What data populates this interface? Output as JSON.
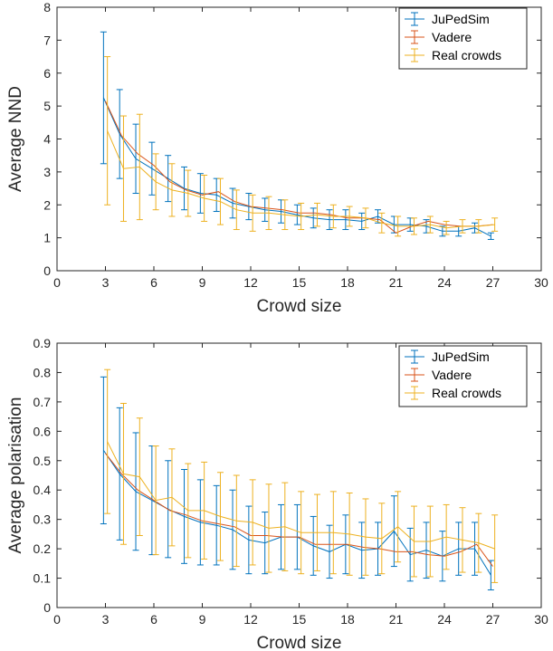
{
  "chart_data": [
    {
      "type": "line",
      "xlabel": "Crowd size",
      "ylabel": "Average NND",
      "xlim": [
        0,
        30
      ],
      "ylim": [
        0,
        8
      ],
      "xticks": [
        0,
        3,
        6,
        9,
        12,
        15,
        18,
        21,
        24,
        27,
        30
      ],
      "yticks": [
        0,
        1,
        2,
        3,
        4,
        5,
        6,
        7,
        8
      ],
      "legend_position": "top-right",
      "grid": false,
      "x": [
        3,
        4,
        5,
        6,
        7,
        8,
        9,
        10,
        11,
        12,
        13,
        14,
        15,
        16,
        17,
        18,
        19,
        20,
        21,
        22,
        23,
        24,
        25,
        26,
        27
      ],
      "series": [
        {
          "name": "JuPedSim",
          "color": "#0072bd",
          "values": [
            5.25,
            4.15,
            3.4,
            3.1,
            2.8,
            2.5,
            2.35,
            2.3,
            2.05,
            1.95,
            1.85,
            1.8,
            1.7,
            1.6,
            1.55,
            1.55,
            1.5,
            1.65,
            1.4,
            1.4,
            1.35,
            1.2,
            1.2,
            1.3,
            1.05
          ],
          "error": [
            2.0,
            1.35,
            1.05,
            0.8,
            0.7,
            0.65,
            0.6,
            0.5,
            0.45,
            0.4,
            0.35,
            0.35,
            0.3,
            0.3,
            0.3,
            0.3,
            0.25,
            0.2,
            0.25,
            0.2,
            0.2,
            0.15,
            0.15,
            0.15,
            0.1
          ]
        },
        {
          "name": "Vadere",
          "color": "#d95319",
          "values": [
            5.15,
            4.1,
            3.55,
            3.2,
            2.7,
            2.45,
            2.3,
            2.4,
            2.1,
            1.95,
            1.9,
            1.85,
            1.75,
            1.75,
            1.7,
            1.6,
            1.6,
            1.55,
            1.15,
            1.35,
            1.5,
            1.4,
            1.35,
            1.35,
            1.4
          ]
        },
        {
          "name": "Real crowds",
          "color": "#edb120",
          "values": [
            4.25,
            3.1,
            3.15,
            2.7,
            2.45,
            2.35,
            2.2,
            2.1,
            1.85,
            1.75,
            1.75,
            1.7,
            1.65,
            1.7,
            1.65,
            1.65,
            1.6,
            1.45,
            1.35,
            1.35,
            1.4,
            1.3,
            1.35,
            1.35,
            1.4
          ],
          "error": [
            2.25,
            1.6,
            1.6,
            0.85,
            0.8,
            0.7,
            0.7,
            0.7,
            0.6,
            0.55,
            0.5,
            0.45,
            0.4,
            0.35,
            0.35,
            0.3,
            0.3,
            0.3,
            0.3,
            0.25,
            0.25,
            0.2,
            0.2,
            0.2,
            0.2
          ]
        }
      ]
    },
    {
      "type": "line",
      "xlabel": "Crowd size",
      "ylabel": "Average polarisation",
      "xlim": [
        0,
        30
      ],
      "ylim": [
        0,
        0.9
      ],
      "xticks": [
        0,
        3,
        6,
        9,
        12,
        15,
        18,
        21,
        24,
        27,
        30
      ],
      "yticks": [
        0,
        0.1,
        0.2,
        0.3,
        0.4,
        0.5,
        0.6,
        0.7,
        0.8,
        0.9
      ],
      "legend_position": "top-right",
      "grid": false,
      "x": [
        3,
        4,
        5,
        6,
        7,
        8,
        9,
        10,
        11,
        12,
        13,
        14,
        15,
        16,
        17,
        18,
        19,
        20,
        21,
        22,
        23,
        24,
        25,
        26,
        27
      ],
      "series": [
        {
          "name": "JuPedSim",
          "color": "#0072bd",
          "values": [
            0.535,
            0.455,
            0.395,
            0.365,
            0.335,
            0.31,
            0.29,
            0.28,
            0.265,
            0.23,
            0.22,
            0.24,
            0.24,
            0.21,
            0.19,
            0.215,
            0.195,
            0.2,
            0.26,
            0.18,
            0.195,
            0.175,
            0.2,
            0.2,
            0.11
          ],
          "error": [
            0.25,
            0.225,
            0.2,
            0.185,
            0.165,
            0.16,
            0.145,
            0.135,
            0.135,
            0.115,
            0.105,
            0.11,
            0.11,
            0.1,
            0.09,
            0.1,
            0.095,
            0.09,
            0.12,
            0.09,
            0.095,
            0.085,
            0.09,
            0.09,
            0.05
          ]
        },
        {
          "name": "Vadere",
          "color": "#d95319",
          "values": [
            0.525,
            0.455,
            0.4,
            0.365,
            0.33,
            0.315,
            0.295,
            0.285,
            0.275,
            0.245,
            0.245,
            0.24,
            0.24,
            0.215,
            0.215,
            0.215,
            0.205,
            0.2,
            0.19,
            0.19,
            0.18,
            0.175,
            0.19,
            0.215,
            0.14
          ]
        },
        {
          "name": "Real crowds",
          "color": "#edb120",
          "values": [
            0.565,
            0.455,
            0.445,
            0.365,
            0.375,
            0.33,
            0.33,
            0.31,
            0.295,
            0.29,
            0.27,
            0.275,
            0.255,
            0.255,
            0.255,
            0.25,
            0.24,
            0.235,
            0.275,
            0.225,
            0.225,
            0.24,
            0.23,
            0.22,
            0.2
          ],
          "error": [
            0.245,
            0.24,
            0.2,
            0.185,
            0.165,
            0.16,
            0.165,
            0.15,
            0.155,
            0.145,
            0.15,
            0.15,
            0.14,
            0.13,
            0.14,
            0.14,
            0.13,
            0.12,
            0.12,
            0.12,
            0.12,
            0.11,
            0.11,
            0.1,
            0.115
          ]
        }
      ]
    }
  ]
}
